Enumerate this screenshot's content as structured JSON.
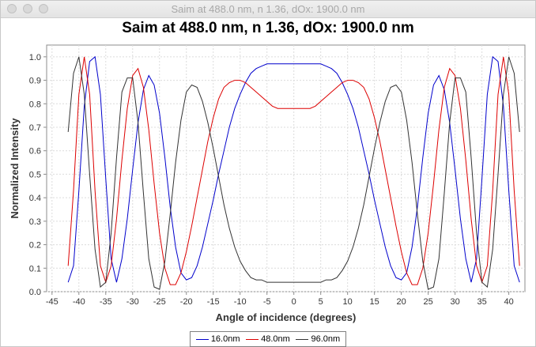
{
  "window": {
    "title": "Saim at 488.0 nm, n 1.36, dOx: 1900.0 nm"
  },
  "chart_data": {
    "type": "line",
    "title": "Saim at 488.0 nm, n 1.36, dOx: 1900.0 nm",
    "xlabel": "Angle of incidence (degrees)",
    "ylabel": "Normalized Intensity",
    "xlim": [
      -46,
      43
    ],
    "ylim": [
      0,
      1.05
    ],
    "xticks": [
      -45,
      -40,
      -35,
      -30,
      -25,
      -20,
      -15,
      -10,
      -5,
      0,
      5,
      10,
      15,
      20,
      25,
      30,
      35,
      40
    ],
    "yticks": [
      0.0,
      0.1,
      0.2,
      0.3,
      0.4,
      0.5,
      0.6,
      0.7,
      0.8,
      0.9,
      1.0
    ],
    "grid": true,
    "legend_position": "bottom",
    "x": [
      -42,
      -41,
      -40,
      -39,
      -38,
      -37,
      -36,
      -35,
      -34,
      -33,
      -32,
      -31,
      -30,
      -29,
      -28,
      -27,
      -26,
      -25,
      -24,
      -23,
      -22,
      -21,
      -20,
      -19,
      -18,
      -17,
      -16,
      -15,
      -14,
      -13,
      -12,
      -11,
      -10,
      -9,
      -8,
      -7,
      -6,
      -5,
      -4,
      -3,
      -2,
      -1,
      0,
      1,
      2,
      3,
      4,
      5,
      6,
      7,
      8,
      9,
      10,
      11,
      12,
      13,
      14,
      15,
      16,
      17,
      18,
      19,
      20,
      21,
      22,
      23,
      24,
      25,
      26,
      27,
      28,
      29,
      30,
      31,
      32,
      33,
      34,
      35,
      36,
      37,
      38,
      39,
      40,
      41,
      42
    ],
    "series": [
      {
        "name": "16.0nm",
        "color": "#0000cc",
        "values": [
          0.04,
          0.11,
          0.43,
          0.79,
          0.98,
          1.0,
          0.84,
          0.48,
          0.14,
          0.04,
          0.14,
          0.31,
          0.52,
          0.72,
          0.86,
          0.92,
          0.88,
          0.76,
          0.57,
          0.36,
          0.19,
          0.08,
          0.05,
          0.06,
          0.11,
          0.19,
          0.29,
          0.39,
          0.5,
          0.6,
          0.7,
          0.78,
          0.84,
          0.89,
          0.93,
          0.95,
          0.96,
          0.97,
          0.97,
          0.97,
          0.97,
          0.97,
          0.97,
          0.97,
          0.97,
          0.97,
          0.97,
          0.97,
          0.96,
          0.95,
          0.93,
          0.89,
          0.84,
          0.78,
          0.7,
          0.6,
          0.5,
          0.39,
          0.29,
          0.19,
          0.11,
          0.06,
          0.05,
          0.08,
          0.19,
          0.36,
          0.57,
          0.76,
          0.88,
          0.92,
          0.86,
          0.72,
          0.52,
          0.31,
          0.14,
          0.04,
          0.14,
          0.48,
          0.84,
          1.0,
          0.98,
          0.79,
          0.43,
          0.11,
          0.04
        ]
      },
      {
        "name": "48.0nm",
        "color": "#dd0000",
        "values": [
          0.11,
          0.43,
          0.84,
          1.0,
          0.84,
          0.43,
          0.11,
          0.04,
          0.11,
          0.31,
          0.56,
          0.78,
          0.92,
          0.95,
          0.87,
          0.69,
          0.46,
          0.25,
          0.1,
          0.03,
          0.03,
          0.08,
          0.17,
          0.28,
          0.4,
          0.52,
          0.64,
          0.74,
          0.82,
          0.87,
          0.89,
          0.9,
          0.9,
          0.89,
          0.87,
          0.85,
          0.83,
          0.81,
          0.79,
          0.78,
          0.78,
          0.78,
          0.78,
          0.78,
          0.78,
          0.78,
          0.79,
          0.81,
          0.83,
          0.85,
          0.87,
          0.89,
          0.9,
          0.9,
          0.89,
          0.87,
          0.82,
          0.74,
          0.64,
          0.52,
          0.4,
          0.28,
          0.17,
          0.08,
          0.03,
          0.03,
          0.1,
          0.25,
          0.46,
          0.69,
          0.87,
          0.95,
          0.92,
          0.78,
          0.56,
          0.31,
          0.11,
          0.04,
          0.11,
          0.43,
          0.84,
          1.0,
          0.84,
          0.43,
          0.11
        ]
      },
      {
        "name": "96.0nm",
        "color": "#333333",
        "values": [
          0.68,
          0.93,
          1.0,
          0.84,
          0.5,
          0.18,
          0.02,
          0.04,
          0.25,
          0.57,
          0.85,
          0.91,
          0.91,
          0.72,
          0.42,
          0.14,
          0.02,
          0.01,
          0.13,
          0.33,
          0.55,
          0.73,
          0.85,
          0.88,
          0.87,
          0.81,
          0.72,
          0.61,
          0.49,
          0.37,
          0.27,
          0.19,
          0.13,
          0.09,
          0.06,
          0.05,
          0.05,
          0.04,
          0.04,
          0.04,
          0.04,
          0.04,
          0.04,
          0.04,
          0.04,
          0.04,
          0.04,
          0.04,
          0.05,
          0.05,
          0.06,
          0.09,
          0.13,
          0.19,
          0.27,
          0.37,
          0.49,
          0.61,
          0.72,
          0.81,
          0.87,
          0.88,
          0.85,
          0.73,
          0.55,
          0.33,
          0.13,
          0.01,
          0.02,
          0.14,
          0.42,
          0.72,
          0.91,
          0.91,
          0.85,
          0.57,
          0.25,
          0.04,
          0.02,
          0.18,
          0.5,
          0.84,
          1.0,
          0.93,
          0.68
        ]
      }
    ]
  }
}
